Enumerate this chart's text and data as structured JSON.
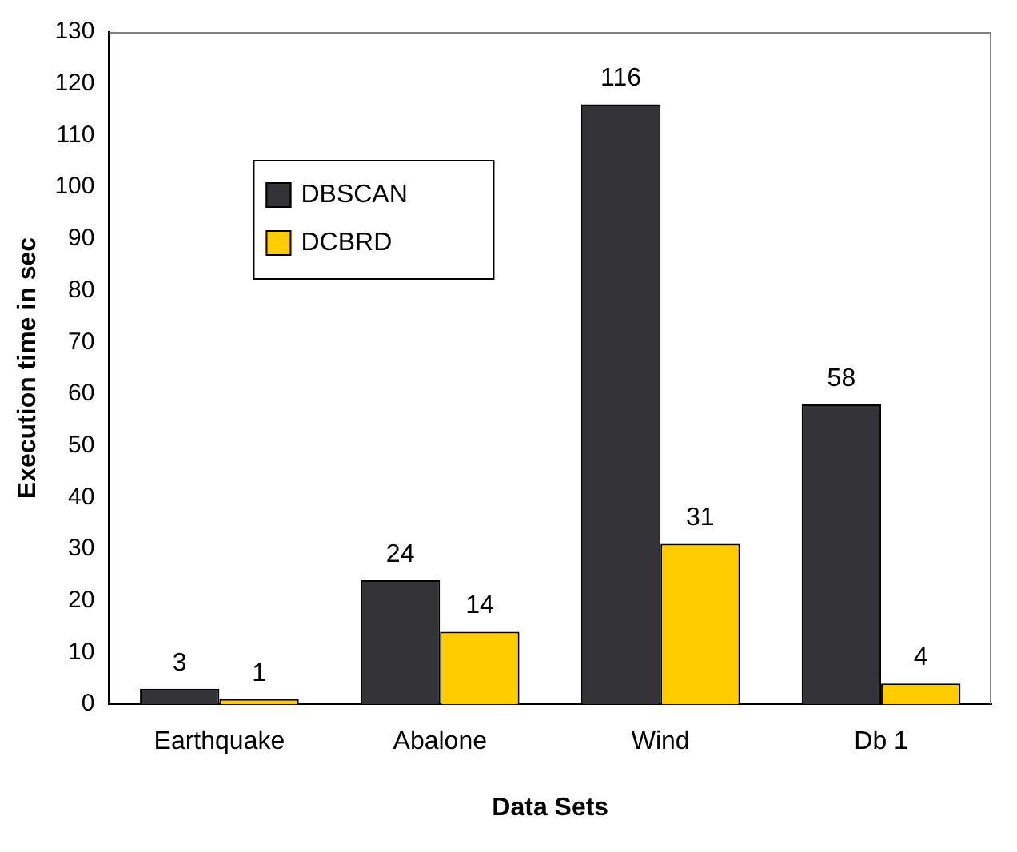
{
  "chart_data": {
    "type": "bar",
    "xlabel": "Data Sets",
    "ylabel": "Execution time in sec",
    "categories": [
      "Earthquake",
      "Abalone",
      "Wind",
      "Db 1"
    ],
    "series": [
      {
        "name": "DBSCAN",
        "color": "#333338",
        "values": [
          3,
          24,
          116,
          58
        ]
      },
      {
        "name": "DCBRD",
        "color": "#ffcc00",
        "values": [
          1,
          14,
          31,
          4
        ]
      }
    ],
    "ylim": [
      0,
      130
    ],
    "yticks": [
      0,
      10,
      20,
      30,
      40,
      50,
      60,
      70,
      80,
      90,
      100,
      110,
      120,
      130
    ],
    "grid": false,
    "legend": "top left",
    "data_labels": true
  }
}
